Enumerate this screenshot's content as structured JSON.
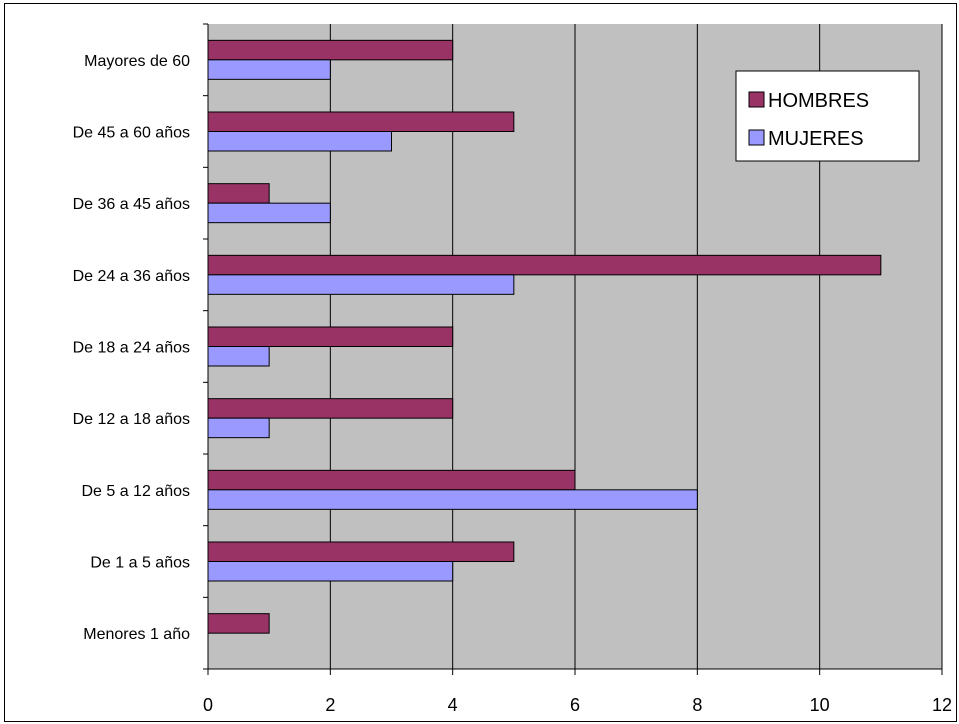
{
  "chart_data": {
    "type": "bar",
    "orientation": "horizontal",
    "categories": [
      "Menores 1 año",
      "De 1 a 5 años",
      "De 5 a 12 años",
      "De 12 a 18 años",
      "De 18 a 24 años",
      "De 24 a 36 años",
      "De 36 a 45 años",
      "De 45 a 60 años",
      "Mayores de 60"
    ],
    "series": [
      {
        "name": "HOMBRES",
        "color": "#993366",
        "values": [
          1,
          5,
          6,
          4,
          4,
          11,
          1,
          5,
          4
        ]
      },
      {
        "name": "MUJERES",
        "color": "#9999ff",
        "values": [
          0,
          4,
          8,
          1,
          1,
          5,
          2,
          3,
          2
        ]
      }
    ],
    "xlim": [
      0,
      12
    ],
    "xticks": [
      "0",
      "2",
      "4",
      "6",
      "8",
      "10",
      "12"
    ],
    "grid": true,
    "plot_background": "#c0c0c0",
    "legend_position": "top-right",
    "title": "",
    "xlabel": "",
    "ylabel": ""
  }
}
